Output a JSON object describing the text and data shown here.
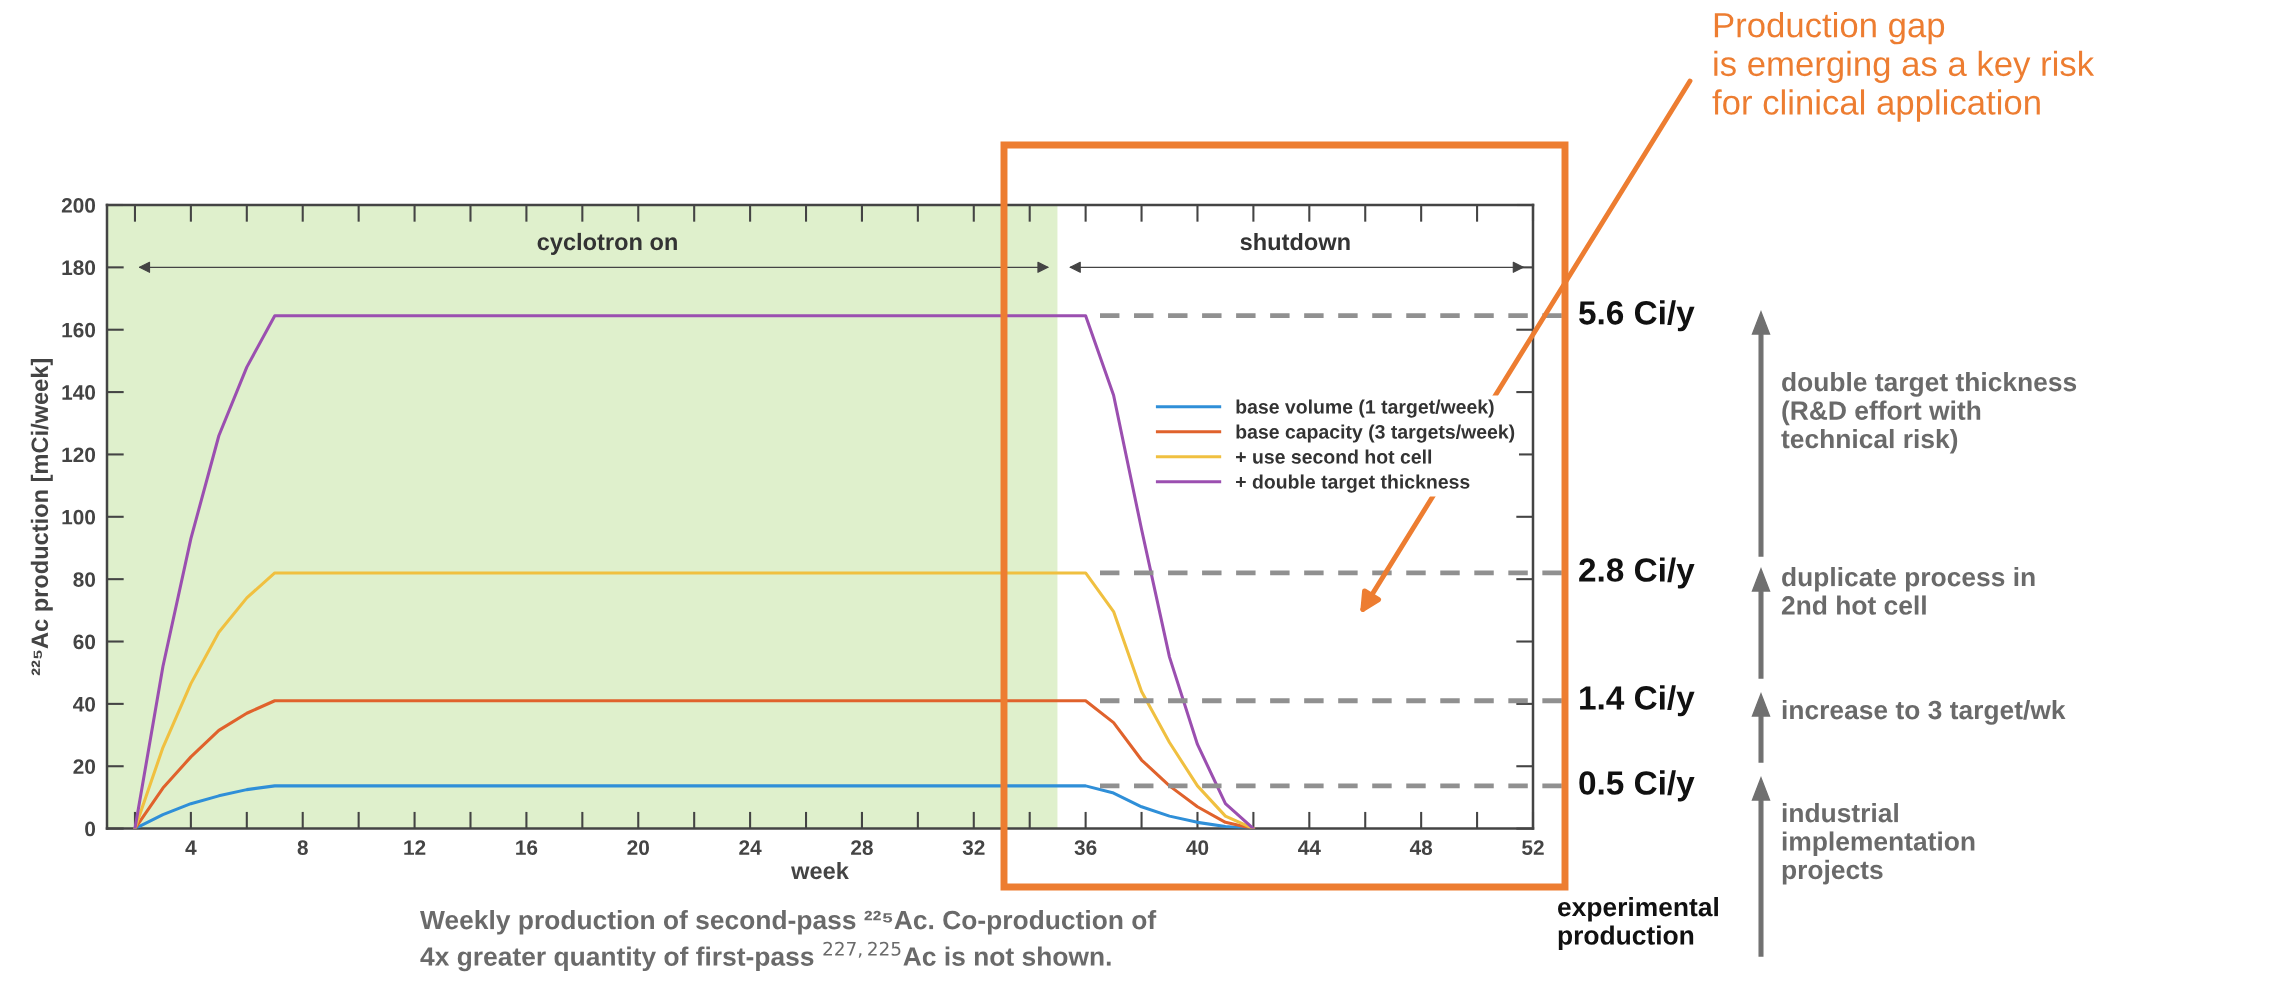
{
  "chart_data": {
    "type": "line",
    "xlabel": "week",
    "ylabel": "²²⁵Ac production [mCi/week]",
    "x": [
      2,
      3,
      4,
      5,
      6,
      7,
      36,
      37,
      38,
      39,
      40,
      41,
      42
    ],
    "series": [
      {
        "name": "base volume (1 target/week)",
        "color": "#2f8fd8",
        "values": [
          0,
          4.5,
          8,
          10.5,
          12.5,
          13.7,
          13.7,
          11.4,
          7,
          4,
          2,
          0.7,
          0
        ]
      },
      {
        "name": "base capacity (3 targets/week)",
        "color": "#e0622c",
        "values": [
          0,
          13,
          23,
          31.5,
          37,
          41,
          41,
          34,
          22,
          13.7,
          7,
          2,
          0
        ]
      },
      {
        "name": "+ use second hot cell",
        "color": "#f0c040",
        "values": [
          0,
          26,
          46.5,
          63,
          74,
          82,
          82,
          69.6,
          44,
          27.6,
          13.7,
          4,
          0
        ]
      },
      {
        "name": "+ double target thickness",
        "color": "#9b4fb0",
        "values": [
          0,
          52,
          93,
          126,
          148,
          164.5,
          164.5,
          139,
          96,
          55,
          27,
          8,
          0
        ]
      }
    ],
    "xlim": [
      1,
      52
    ],
    "ylim": [
      0,
      200
    ],
    "xticks": [
      4,
      8,
      12,
      16,
      20,
      24,
      28,
      32,
      36,
      40,
      44,
      48,
      52
    ],
    "yticks": [
      0,
      20,
      40,
      60,
      80,
      100,
      120,
      140,
      160,
      180,
      200
    ],
    "grid": false,
    "legend": "right",
    "marker": "none",
    "line_style": "solid",
    "bands": [
      {
        "axis": "x",
        "from": 1,
        "to": 35,
        "label": "cyclotron on",
        "color": "#dff0cc"
      },
      {
        "axis": "x",
        "from": 35,
        "to": 52,
        "label": "shutdown",
        "color": "#ffffff"
      }
    ],
    "ref_lines": [
      {
        "axis": "y",
        "value": 164.5,
        "label": "5.6 Ci/y",
        "color": "#909090",
        "line_style": "dashed"
      },
      {
        "axis": "y",
        "value": 82,
        "label": "2.8 Ci/y",
        "color": "#909090",
        "line_style": "dashed"
      },
      {
        "axis": "y",
        "value": 41,
        "label": "1.4 Ci/y",
        "color": "#909090",
        "line_style": "dashed"
      },
      {
        "axis": "y",
        "value": 13.7,
        "label": "0.5 Ci/y",
        "color": "#909090",
        "line_style": "dashed"
      }
    ],
    "annotations": [
      "Production gap\nis emerging as a key risk\nfor clinical application",
      "double target thickness\n(R&D effort with\ntechnical risk)",
      "duplicate process in\n2nd hot cell",
      "increase to 3 target/wk",
      "industrial\nimplementation\nprojects",
      "experimental\nproduction",
      "Weekly production of second-pass ²²⁵Ac. Co-production of\n4x greater quantity of first-pass $^{227,225}$Ac is not shown."
    ]
  }
}
